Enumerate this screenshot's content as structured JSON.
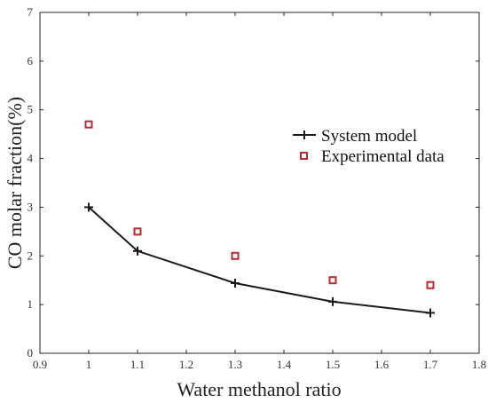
{
  "chart_data": {
    "type": "line",
    "title": "",
    "xlabel": "Water methanol ratio",
    "ylabel": "CO molar fraction(%)",
    "xlim": [
      0.9,
      1.8
    ],
    "ylim": [
      0,
      7
    ],
    "x_ticks": [
      0.9,
      1,
      1.1,
      1.2,
      1.3,
      1.4,
      1.5,
      1.6,
      1.7,
      1.8
    ],
    "x_tick_labels": [
      "0.9",
      "1",
      "1.1",
      "1.2",
      "1.3",
      "1.4",
      "1.5",
      "1.6",
      "1.7",
      "1.8"
    ],
    "y_ticks": [
      0,
      1,
      2,
      3,
      4,
      5,
      6,
      7
    ],
    "y_tick_labels": [
      "0",
      "1",
      "2",
      "3",
      "4",
      "5",
      "6",
      "7"
    ],
    "grid": false,
    "legend_position": "right",
    "series": [
      {
        "name": "System model",
        "style": "line-plus",
        "color": "#1a1a1a",
        "x": [
          1.0,
          1.1,
          1.3,
          1.5,
          1.7
        ],
        "y": [
          3.0,
          2.1,
          1.44,
          1.06,
          0.83
        ]
      },
      {
        "name": "Experimental data",
        "style": "square-marker",
        "color": "#c0272d",
        "x": [
          1.0,
          1.1,
          1.3,
          1.5,
          1.7
        ],
        "y": [
          4.7,
          2.5,
          2.0,
          1.5,
          1.4
        ]
      }
    ]
  }
}
